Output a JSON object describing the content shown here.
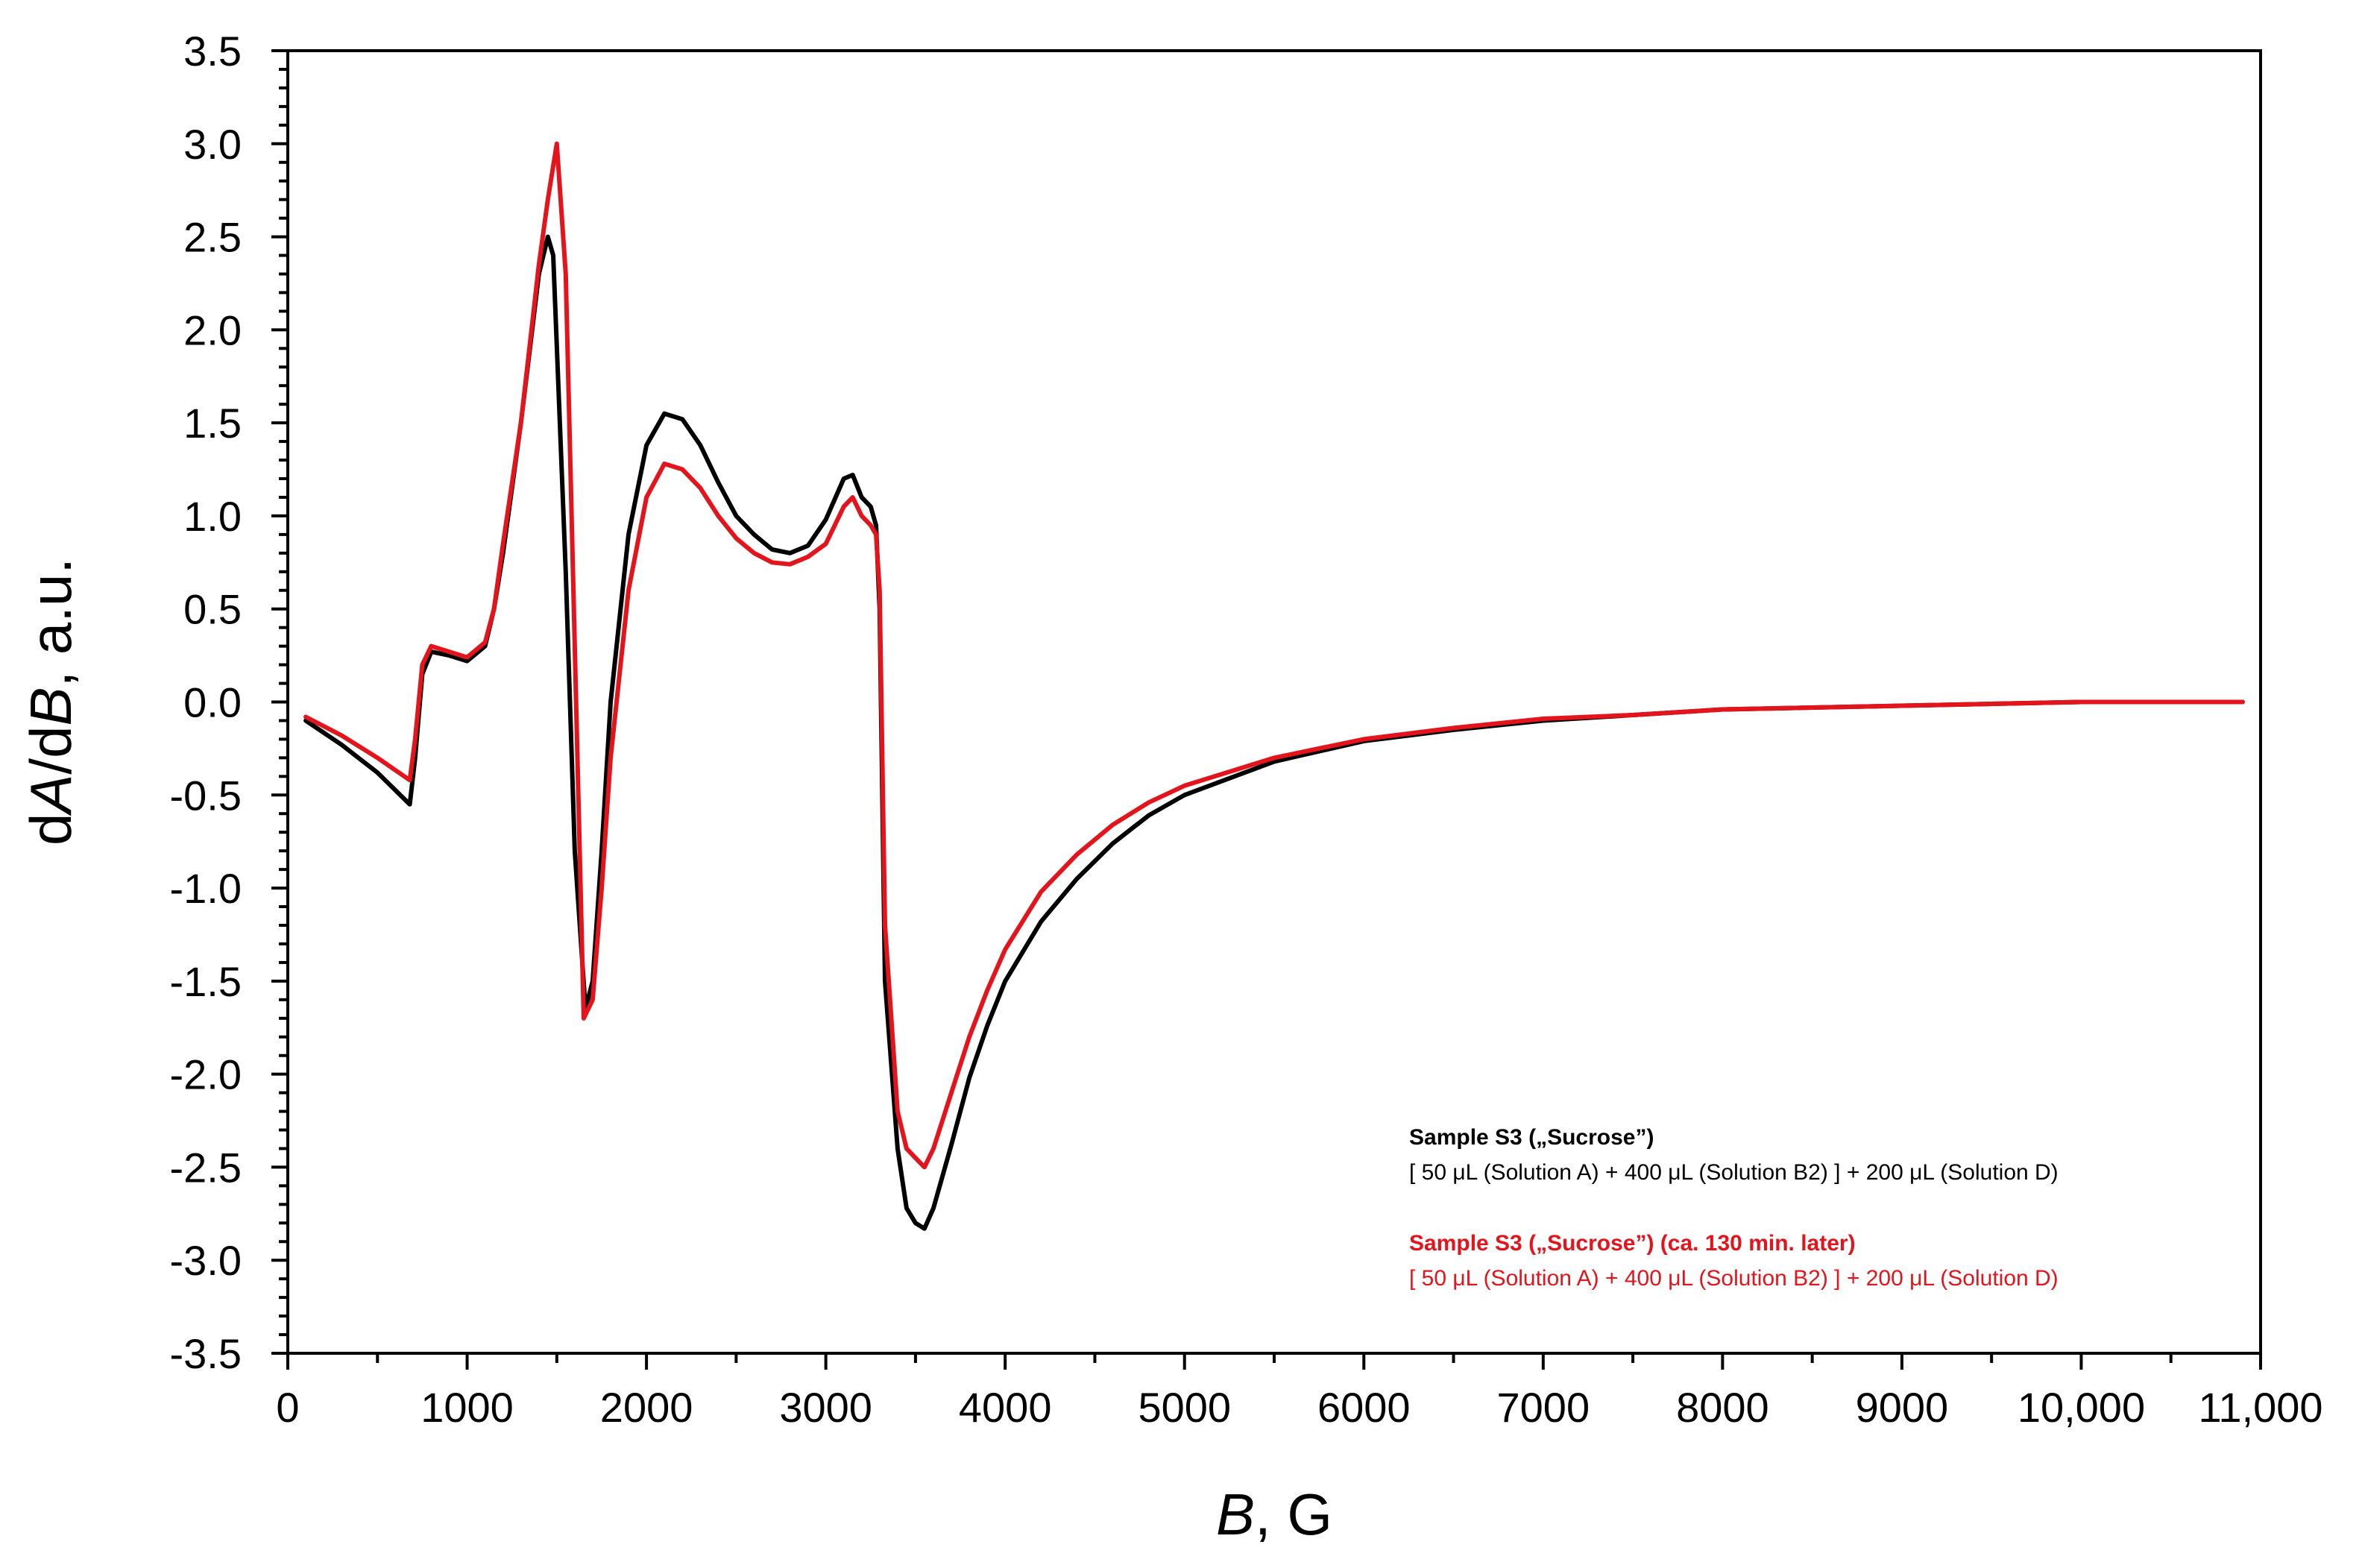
{
  "chart_data": {
    "type": "line",
    "title": "",
    "xlabel": {
      "italic": "B",
      "rest": ", G"
    },
    "ylabel": {
      "d1": "d",
      "italic1": "A",
      "mid": "/d",
      "italic2": "B",
      "rest": ", a.u."
    },
    "xlim": [
      0,
      11000
    ],
    "ylim": [
      -3.5,
      3.5
    ],
    "x_ticks": [
      0,
      1000,
      2000,
      3000,
      4000,
      5000,
      6000,
      7000,
      8000,
      9000,
      10000,
      11000
    ],
    "x_tick_labels": [
      "0",
      "1000",
      "2000",
      "3000",
      "4000",
      "5000",
      "6000",
      "7000",
      "8000",
      "9000",
      "10,000",
      "11,000"
    ],
    "y_ticks": [
      3.5,
      3.0,
      2.5,
      2.0,
      1.5,
      1.0,
      0.5,
      0.0,
      -0.5,
      -1.0,
      -1.5,
      -2.0,
      -2.5,
      -3.0,
      -3.5
    ],
    "y_tick_labels": [
      "3.5",
      "3.0",
      "2.5",
      "2.0",
      "1.5",
      "1.0",
      "0.5",
      "0.0",
      "-0.5",
      "-1.0",
      "-1.5",
      "-2.0",
      "-2.5",
      "-3.0",
      "-3.5"
    ],
    "grid": false,
    "legend_position": "lower-right",
    "series": [
      {
        "name": "Sample S3 („Sucrose”)",
        "description": "[ 50 μL (Solution A) + 400 μL (Solution B2) ] + 200 μL (Solution D)",
        "color": "#000000",
        "x": [
          100,
          300,
          500,
          680,
          710,
          750,
          800,
          900,
          1000,
          1100,
          1150,
          1200,
          1300,
          1400,
          1450,
          1480,
          1550,
          1600,
          1660,
          1700,
          1750,
          1800,
          1900,
          2000,
          2100,
          2200,
          2300,
          2400,
          2500,
          2600,
          2700,
          2800,
          2900,
          3000,
          3100,
          3150,
          3200,
          3250,
          3280,
          3300,
          3330,
          3400,
          3450,
          3500,
          3550,
          3600,
          3700,
          3800,
          3900,
          4000,
          4200,
          4400,
          4600,
          4800,
          5000,
          5500,
          6000,
          6500,
          7000,
          7500,
          8000,
          8500,
          9000,
          9500,
          10000,
          10500,
          10900
        ],
        "y": [
          -0.1,
          -0.23,
          -0.38,
          -0.55,
          -0.3,
          0.15,
          0.27,
          0.25,
          0.22,
          0.3,
          0.5,
          0.8,
          1.5,
          2.3,
          2.5,
          2.4,
          0.7,
          -0.8,
          -1.65,
          -1.5,
          -0.8,
          0.0,
          0.9,
          1.38,
          1.55,
          1.52,
          1.38,
          1.18,
          1.0,
          0.9,
          0.82,
          0.8,
          0.84,
          0.98,
          1.2,
          1.22,
          1.1,
          1.05,
          0.95,
          0.5,
          -1.5,
          -2.4,
          -2.72,
          -2.8,
          -2.83,
          -2.72,
          -2.38,
          -2.02,
          -1.74,
          -1.5,
          -1.18,
          -0.95,
          -0.76,
          -0.61,
          -0.5,
          -0.32,
          -0.21,
          -0.15,
          -0.1,
          -0.07,
          -0.04,
          -0.03,
          -0.02,
          -0.01,
          0.0,
          0.0,
          0.0
        ]
      },
      {
        "name": "Sample S3 („Sucrose”) (ca. 130 min. later)",
        "description": "[ 50 μL (Solution A) + 400 μL (Solution B2) ] + 200 μL (Solution D)",
        "color": "#e3141c",
        "x": [
          100,
          300,
          500,
          680,
          710,
          750,
          800,
          900,
          1000,
          1100,
          1150,
          1200,
          1300,
          1400,
          1450,
          1500,
          1550,
          1600,
          1650,
          1700,
          1750,
          1800,
          1900,
          2000,
          2100,
          2200,
          2300,
          2400,
          2500,
          2600,
          2700,
          2800,
          2900,
          3000,
          3100,
          3150,
          3200,
          3250,
          3280,
          3300,
          3330,
          3400,
          3450,
          3500,
          3550,
          3600,
          3700,
          3800,
          3900,
          4000,
          4200,
          4400,
          4600,
          4800,
          5000,
          5500,
          6000,
          6500,
          7000,
          7500,
          8000,
          8500,
          9000,
          9500,
          10000,
          10500,
          10900
        ],
        "y": [
          -0.08,
          -0.18,
          -0.3,
          -0.42,
          -0.2,
          0.2,
          0.3,
          0.27,
          0.24,
          0.32,
          0.5,
          0.85,
          1.5,
          2.35,
          2.7,
          3.0,
          2.3,
          0.3,
          -1.7,
          -1.6,
          -1.0,
          -0.3,
          0.6,
          1.1,
          1.28,
          1.25,
          1.15,
          1.0,
          0.88,
          0.8,
          0.75,
          0.74,
          0.78,
          0.85,
          1.05,
          1.1,
          1.0,
          0.95,
          0.9,
          0.6,
          -1.2,
          -2.2,
          -2.4,
          -2.45,
          -2.5,
          -2.4,
          -2.1,
          -1.8,
          -1.55,
          -1.33,
          -1.02,
          -0.82,
          -0.66,
          -0.54,
          -0.45,
          -0.3,
          -0.2,
          -0.14,
          -0.09,
          -0.07,
          -0.04,
          -0.03,
          -0.02,
          -0.01,
          0.0,
          0.0,
          0.0
        ]
      }
    ]
  }
}
